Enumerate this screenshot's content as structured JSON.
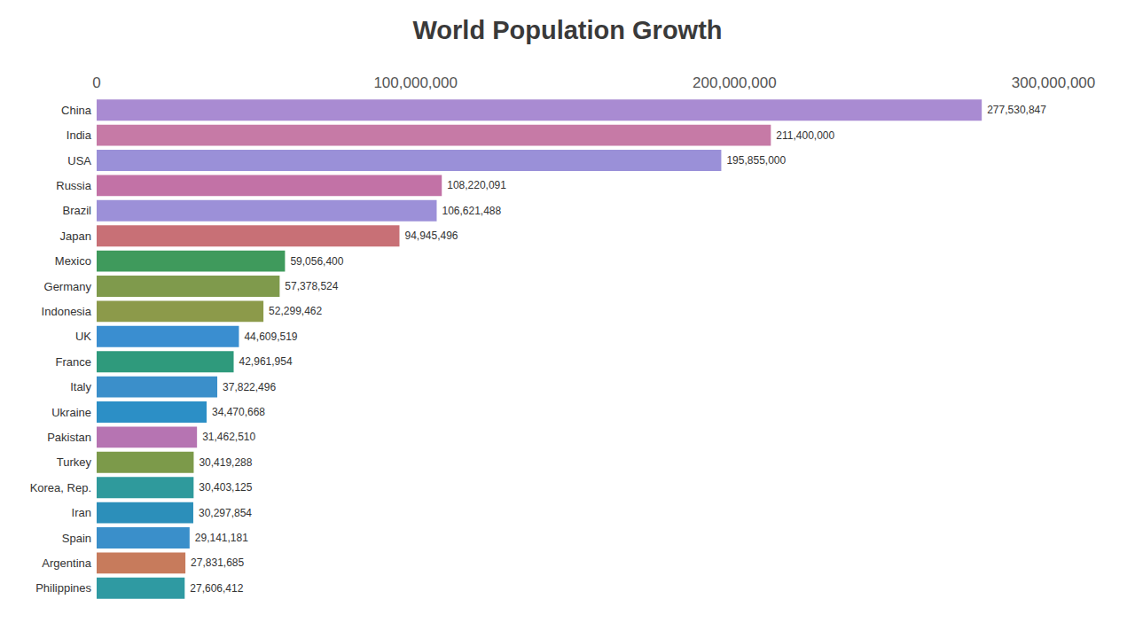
{
  "chart_data": {
    "type": "bar",
    "title": "World Population Growth",
    "orientation": "horizontal",
    "categories": [
      "China",
      "India",
      "USA",
      "Russia",
      "Brazil",
      "Japan",
      "Mexico",
      "Germany",
      "Indonesia",
      "UK",
      "France",
      "Italy",
      "Ukraine",
      "Pakistan",
      "Turkey",
      "Korea, Rep.",
      "Iran",
      "Spain",
      "Argentina",
      "Philippines"
    ],
    "values": [
      277530847,
      211400000,
      195855000,
      108220091,
      106621488,
      94945496,
      59056400,
      57378524,
      52299462,
      44609519,
      42961954,
      37822496,
      34470668,
      31462510,
      30419288,
      30403125,
      30297854,
      29141181,
      27831685,
      27606412
    ],
    "value_labels": [
      "277,530,847",
      "211,400,000",
      "195,855,000",
      "108,220,091",
      "106,621,488",
      "94,945,496",
      "59,056,400",
      "57,378,524",
      "52,299,462",
      "44,609,519",
      "42,961,954",
      "37,822,496",
      "34,470,668",
      "31,462,510",
      "30,419,288",
      "30,403,125",
      "30,297,854",
      "29,141,181",
      "27,831,685",
      "27,606,412"
    ],
    "colors": [
      "#a98bd2",
      "#c67aa6",
      "#9a90d8",
      "#c272a6",
      "#9c90d8",
      "#c87076",
      "#3f9a5c",
      "#7f9a4c",
      "#8c9a4a",
      "#3a8ed0",
      "#2f9a7c",
      "#3b8fca",
      "#2c8fc6",
      "#b674b2",
      "#7c9a4a",
      "#2f9a9c",
      "#2c8fba",
      "#3a8fca",
      "#c77b5c",
      "#2f9aa2"
    ],
    "xlim": [
      0,
      300000000
    ],
    "xticks": [
      {
        "value": 0,
        "label": "0"
      },
      {
        "value": 100000000,
        "label": "100,000,000"
      },
      {
        "value": 200000000,
        "label": "200,000,000"
      },
      {
        "value": 300000000,
        "label": "300,000,000"
      }
    ],
    "data_labels": true,
    "grid": false
  }
}
